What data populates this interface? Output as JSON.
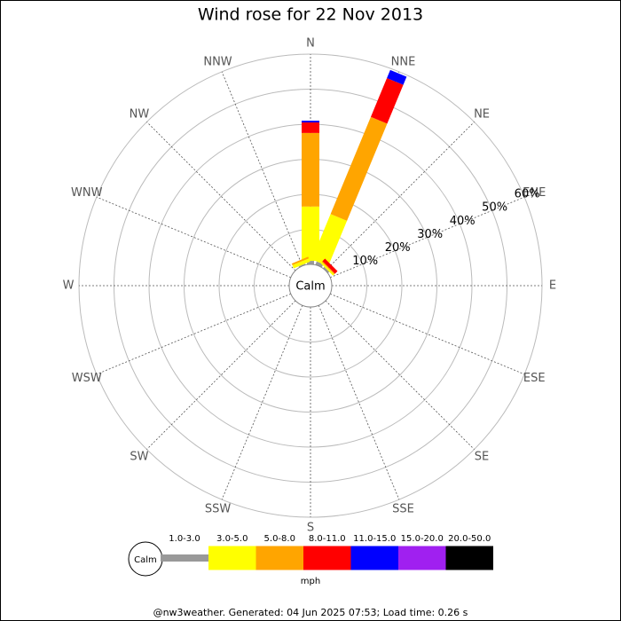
{
  "chart_data": {
    "type": "wind-rose",
    "title": "Wind rose for 22 Nov 2013",
    "center_label": "Calm",
    "directions": [
      "N",
      "NNE",
      "NE",
      "ENE",
      "E",
      "ESE",
      "SE",
      "SSE",
      "S",
      "SSW",
      "SW",
      "WSW",
      "W",
      "WNW",
      "NW",
      "NNW"
    ],
    "series": [
      {
        "name": "1.0-3.0",
        "color": "#999999",
        "values": [
          1,
          1,
          0.5,
          0,
          0,
          0,
          0,
          0,
          0,
          0,
          0,
          0,
          0,
          0,
          0,
          0.3
        ]
      },
      {
        "name": "3.0-5.0",
        "color": "#ffff00",
        "values": [
          15.5,
          14,
          0.5,
          0,
          0,
          0,
          0,
          0,
          0,
          0,
          0,
          0,
          0,
          0,
          0,
          1
        ]
      },
      {
        "name": "5.0-8.0",
        "color": "#ffa500",
        "values": [
          21,
          30,
          0.3,
          0,
          0,
          0,
          0,
          0,
          0,
          0,
          0,
          0,
          0,
          0,
          0,
          0.5
        ]
      },
      {
        "name": "8.0-11.0",
        "color": "#ff0000",
        "values": [
          3,
          12,
          1,
          0,
          0,
          0,
          0,
          0,
          0,
          0,
          0,
          0,
          0,
          0,
          0,
          0
        ]
      },
      {
        "name": "11.0-15.0",
        "color": "#0000ff",
        "values": [
          0.5,
          2.5,
          0,
          0,
          0,
          0,
          0,
          0,
          0,
          0,
          0,
          0,
          0,
          0,
          0,
          0
        ]
      },
      {
        "name": "15.0-20.0",
        "color": "#a020f0",
        "values": [
          0,
          0,
          0,
          0,
          0,
          0,
          0,
          0,
          0,
          0,
          0,
          0,
          0,
          0,
          0,
          0
        ]
      },
      {
        "name": "20.0-50.0",
        "color": "#000000",
        "values": [
          0,
          0,
          0,
          0,
          0,
          0,
          0,
          0,
          0,
          0,
          0,
          0,
          0,
          0,
          0,
          0
        ]
      }
    ],
    "rlim": [
      0,
      60
    ],
    "rticks": [
      {
        "value": 10,
        "label": "10%"
      },
      {
        "value": 20,
        "label": "20%"
      },
      {
        "value": 30,
        "label": "30%"
      },
      {
        "value": 40,
        "label": "40%"
      },
      {
        "value": 50,
        "label": "50%"
      },
      {
        "value": 60,
        "label": "60%"
      }
    ],
    "unit": "mph",
    "footer": "@nw3weather. Generated: 04 Jun 2025 07:53; Load time: 0.26 s"
  }
}
